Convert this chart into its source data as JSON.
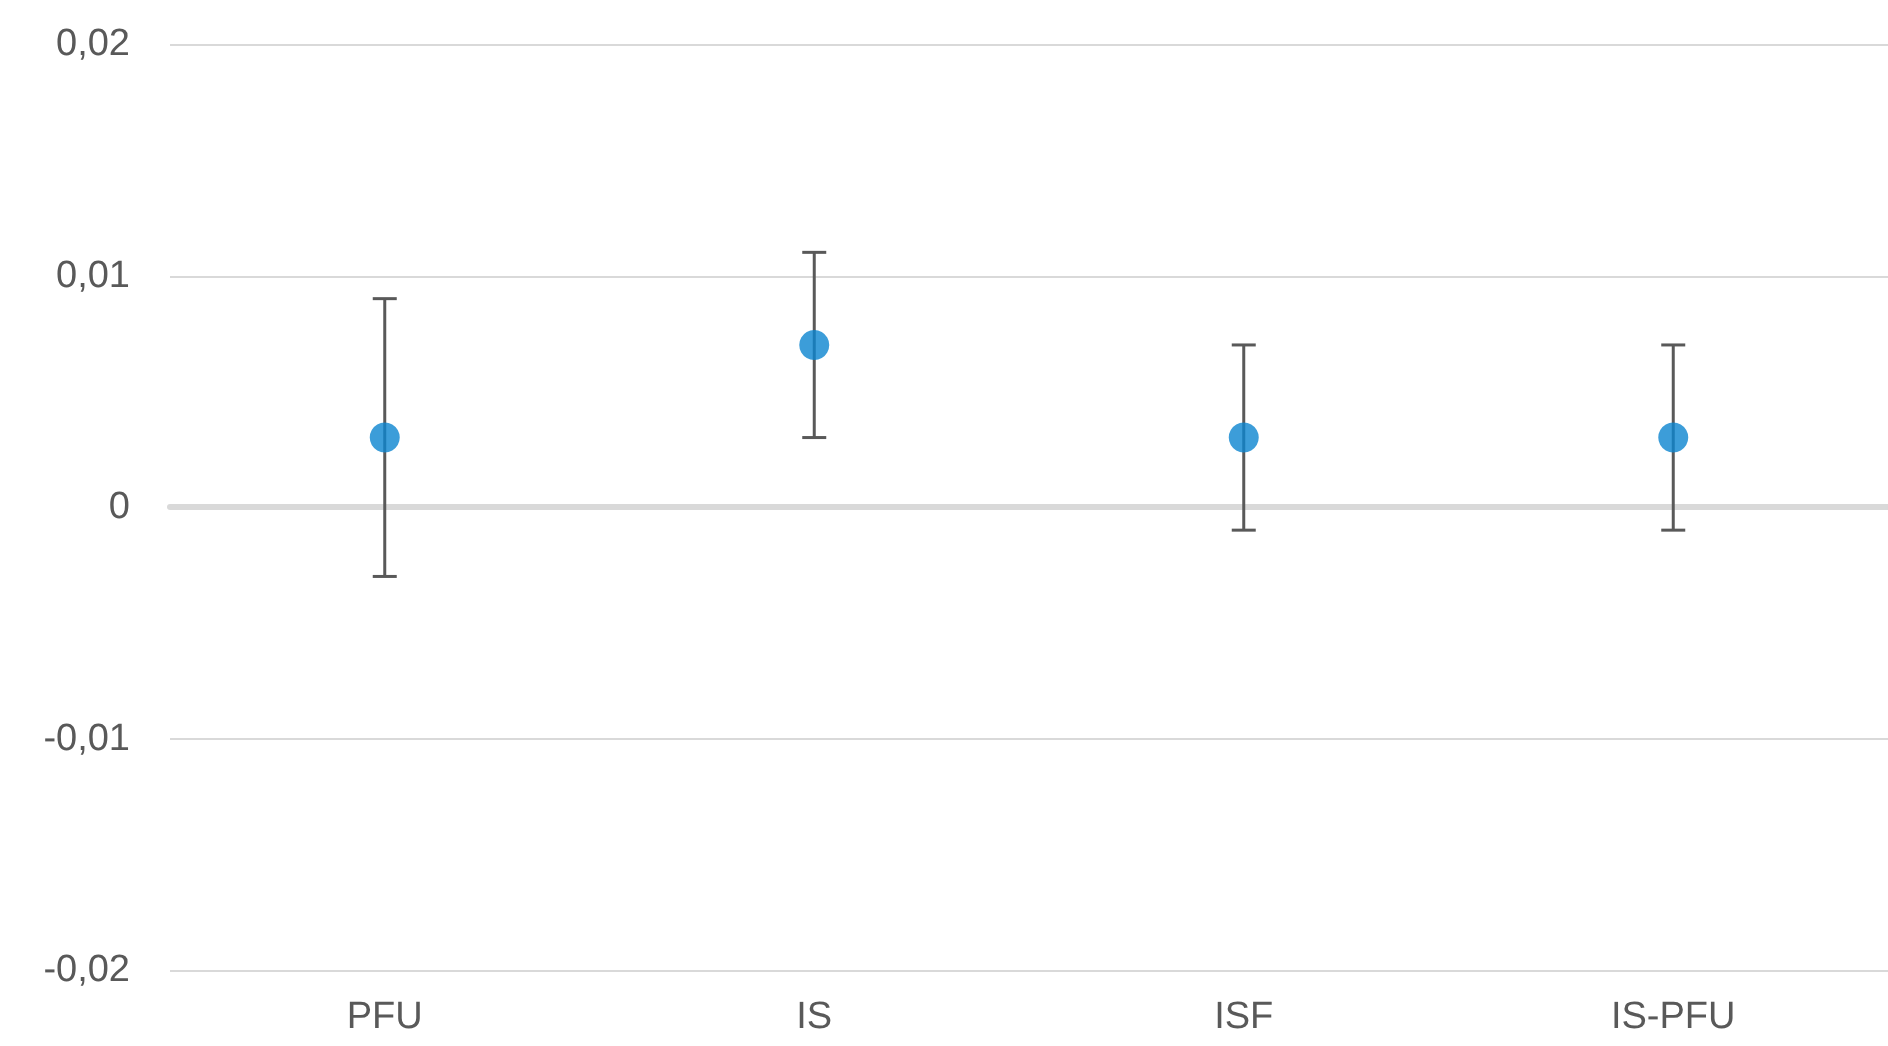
{
  "chart_data": {
    "type": "scatter",
    "categories": [
      "PFU",
      "IS",
      "ISF",
      "IS-PFU"
    ],
    "values": [
      0.003,
      0.007,
      0.003,
      0.003
    ],
    "errors": [
      0.006,
      0.004,
      0.004,
      0.004
    ],
    "color": "#0b84cf",
    "marker": "circle",
    "ylim": [
      -0.02,
      0.02
    ],
    "yticks": [
      {
        "value": -0.02,
        "label": "-0,02"
      },
      {
        "value": -0.01,
        "label": "-0,01"
      },
      {
        "value": 0,
        "label": "0"
      },
      {
        "value": 0.01,
        "label": "0,01"
      },
      {
        "value": 0.02,
        "label": "0,02"
      }
    ],
    "grid": "y"
  }
}
